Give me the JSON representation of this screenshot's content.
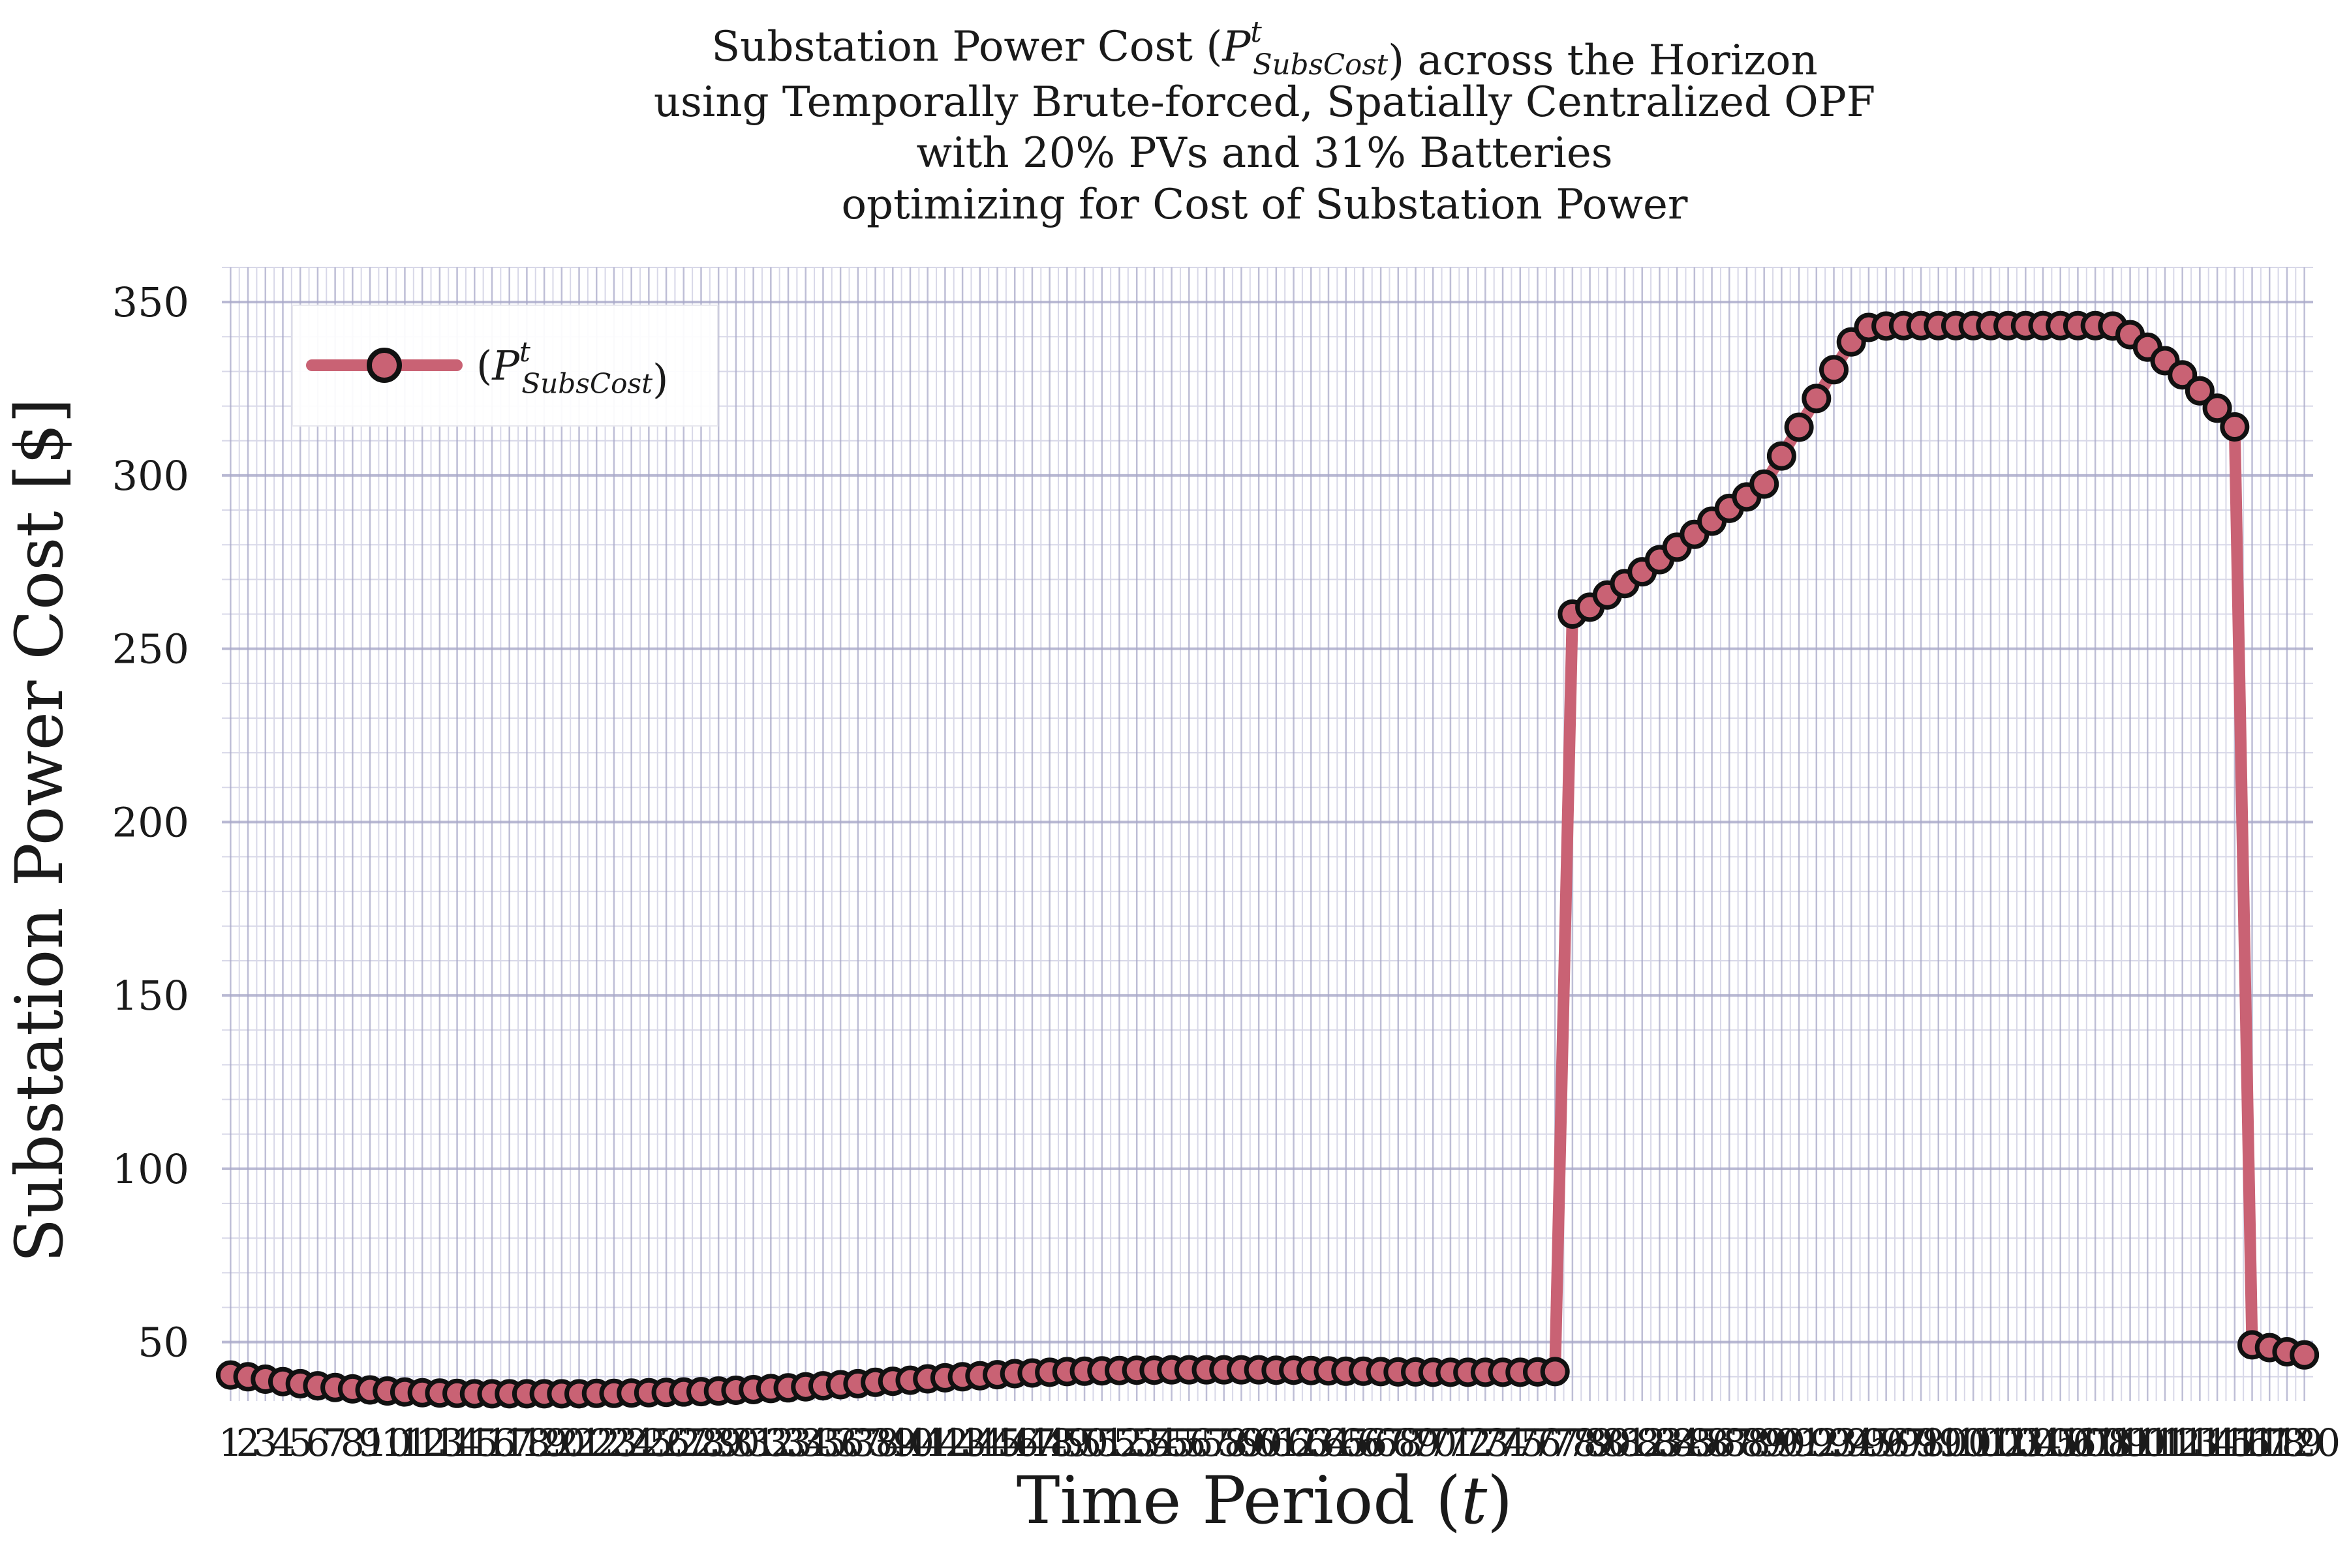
{
  "chart_data": {
    "type": "line",
    "title_lines": [
      "Substation Power Cost (P^t_SubsCost) across the Horizon",
      "using Temporally Brute-forced, Spatially Centralized OPF",
      "with 20% PVs and 31% Batteries",
      "optimizing for Cost of Substation Power"
    ],
    "xlabel": "Time Period (t)",
    "ylabel": "Substation Power Cost [$]",
    "xlim": [
      0.5,
      120.5
    ],
    "ylim": [
      33,
      360
    ],
    "yticks": [
      50,
      100,
      150,
      200,
      250,
      300,
      350
    ],
    "grid": true,
    "legend": {
      "position": "top-left",
      "label": "(P^t_SubsCost)"
    },
    "colors": {
      "line": "#c96274",
      "marker_edge": "#111111",
      "grid_major": "#a8a8c8",
      "grid_minor": "#d8d8e8"
    },
    "series": [
      {
        "name": "(P^t_SubsCost)",
        "x": [
          1,
          2,
          3,
          4,
          5,
          6,
          7,
          8,
          9,
          10,
          11,
          12,
          13,
          14,
          15,
          16,
          17,
          18,
          19,
          20,
          21,
          22,
          23,
          24,
          25,
          26,
          27,
          28,
          29,
          30,
          31,
          32,
          33,
          34,
          35,
          36,
          37,
          38,
          39,
          40,
          41,
          42,
          43,
          44,
          45,
          46,
          47,
          48,
          49,
          50,
          51,
          52,
          53,
          54,
          55,
          56,
          57,
          58,
          59,
          60,
          61,
          62,
          63,
          64,
          65,
          66,
          67,
          68,
          69,
          70,
          71,
          72,
          73,
          74,
          75,
          76,
          77,
          78,
          79,
          80,
          81,
          82,
          83,
          84,
          85,
          86,
          87,
          88,
          89,
          90,
          91,
          92,
          93,
          94,
          95,
          96,
          97,
          98,
          99,
          100,
          101,
          102,
          103,
          104,
          105,
          106,
          107,
          108,
          109,
          110,
          111,
          112,
          113,
          114,
          115,
          116,
          117,
          118,
          119,
          120
        ],
        "values": [
          40.5,
          40.0,
          39.3,
          38.6,
          38.0,
          37.4,
          36.9,
          36.5,
          36.2,
          35.9,
          35.6,
          35.4,
          35.3,
          35.2,
          35.1,
          35.1,
          35.1,
          35.1,
          35.1,
          35.1,
          35.1,
          35.2,
          35.2,
          35.3,
          35.4,
          35.5,
          35.6,
          35.7,
          35.9,
          36.1,
          36.3,
          36.6,
          36.8,
          37.1,
          37.4,
          37.7,
          38.0,
          38.4,
          38.7,
          39.0,
          39.4,
          39.7,
          40.0,
          40.3,
          40.6,
          40.9,
          41.1,
          41.3,
          41.5,
          41.6,
          41.7,
          41.8,
          41.9,
          41.9,
          42.0,
          42.0,
          42.0,
          42.0,
          42.0,
          42.0,
          41.9,
          41.9,
          41.8,
          41.7,
          41.6,
          41.6,
          41.5,
          41.4,
          41.4,
          41.3,
          41.3,
          41.3,
          41.3,
          41.3,
          41.3,
          41.4,
          41.5,
          260.0,
          262.0,
          265.5,
          268.8,
          272.2,
          275.7,
          279.3,
          283.0,
          286.8,
          290.5,
          293.8,
          297.5,
          305.6,
          313.9,
          322.2,
          330.5,
          338.5,
          342.7,
          343.1,
          343.2,
          343.2,
          343.2,
          343.2,
          343.2,
          343.2,
          343.2,
          343.2,
          343.2,
          343.2,
          343.2,
          343.2,
          343.1,
          340.6,
          337.0,
          333.1,
          329.0,
          324.4,
          319.4,
          314.0,
          49.2,
          48.4,
          47.2,
          46.3
        ]
      }
    ]
  }
}
